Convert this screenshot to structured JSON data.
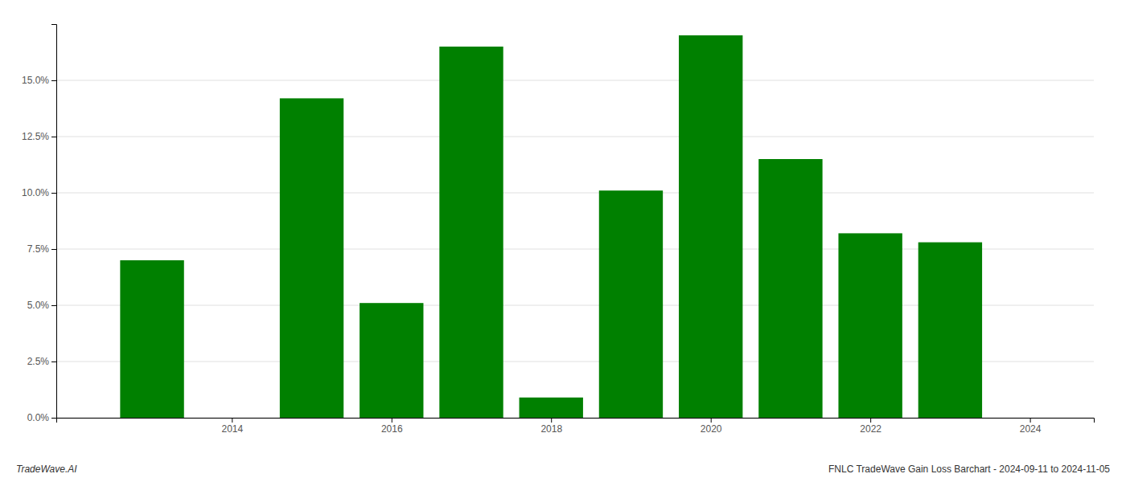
{
  "chart_data": {
    "type": "bar",
    "x": [
      2013,
      2015,
      2016,
      2017,
      2018,
      2019,
      2020,
      2021,
      2022,
      2023
    ],
    "values": [
      0.07,
      0.142,
      0.051,
      0.165,
      0.009,
      0.101,
      0.17,
      0.115,
      0.082,
      0.078
    ],
    "color": "#008000",
    "xlim": [
      2011.8,
      2024.8
    ],
    "xticks": [
      2014,
      2016,
      2018,
      2020,
      2022,
      2024
    ],
    "ylim": [
      0,
      0.175
    ],
    "yticks": [
      {
        "value": 0.0,
        "label": "0.0%"
      },
      {
        "value": 0.025,
        "label": "2.5%"
      },
      {
        "value": 0.05,
        "label": "5.0%"
      },
      {
        "value": 0.075,
        "label": "7.5%"
      },
      {
        "value": 0.1,
        "label": "10.0%"
      },
      {
        "value": 0.125,
        "label": "12.5%"
      },
      {
        "value": 0.15,
        "label": "15.0%"
      }
    ],
    "grid": true,
    "annotations": [
      "TradeWave.AI",
      "FNLC TradeWave Gain Loss Barchart - 2024-09-11 to 2024-11-05"
    ]
  }
}
